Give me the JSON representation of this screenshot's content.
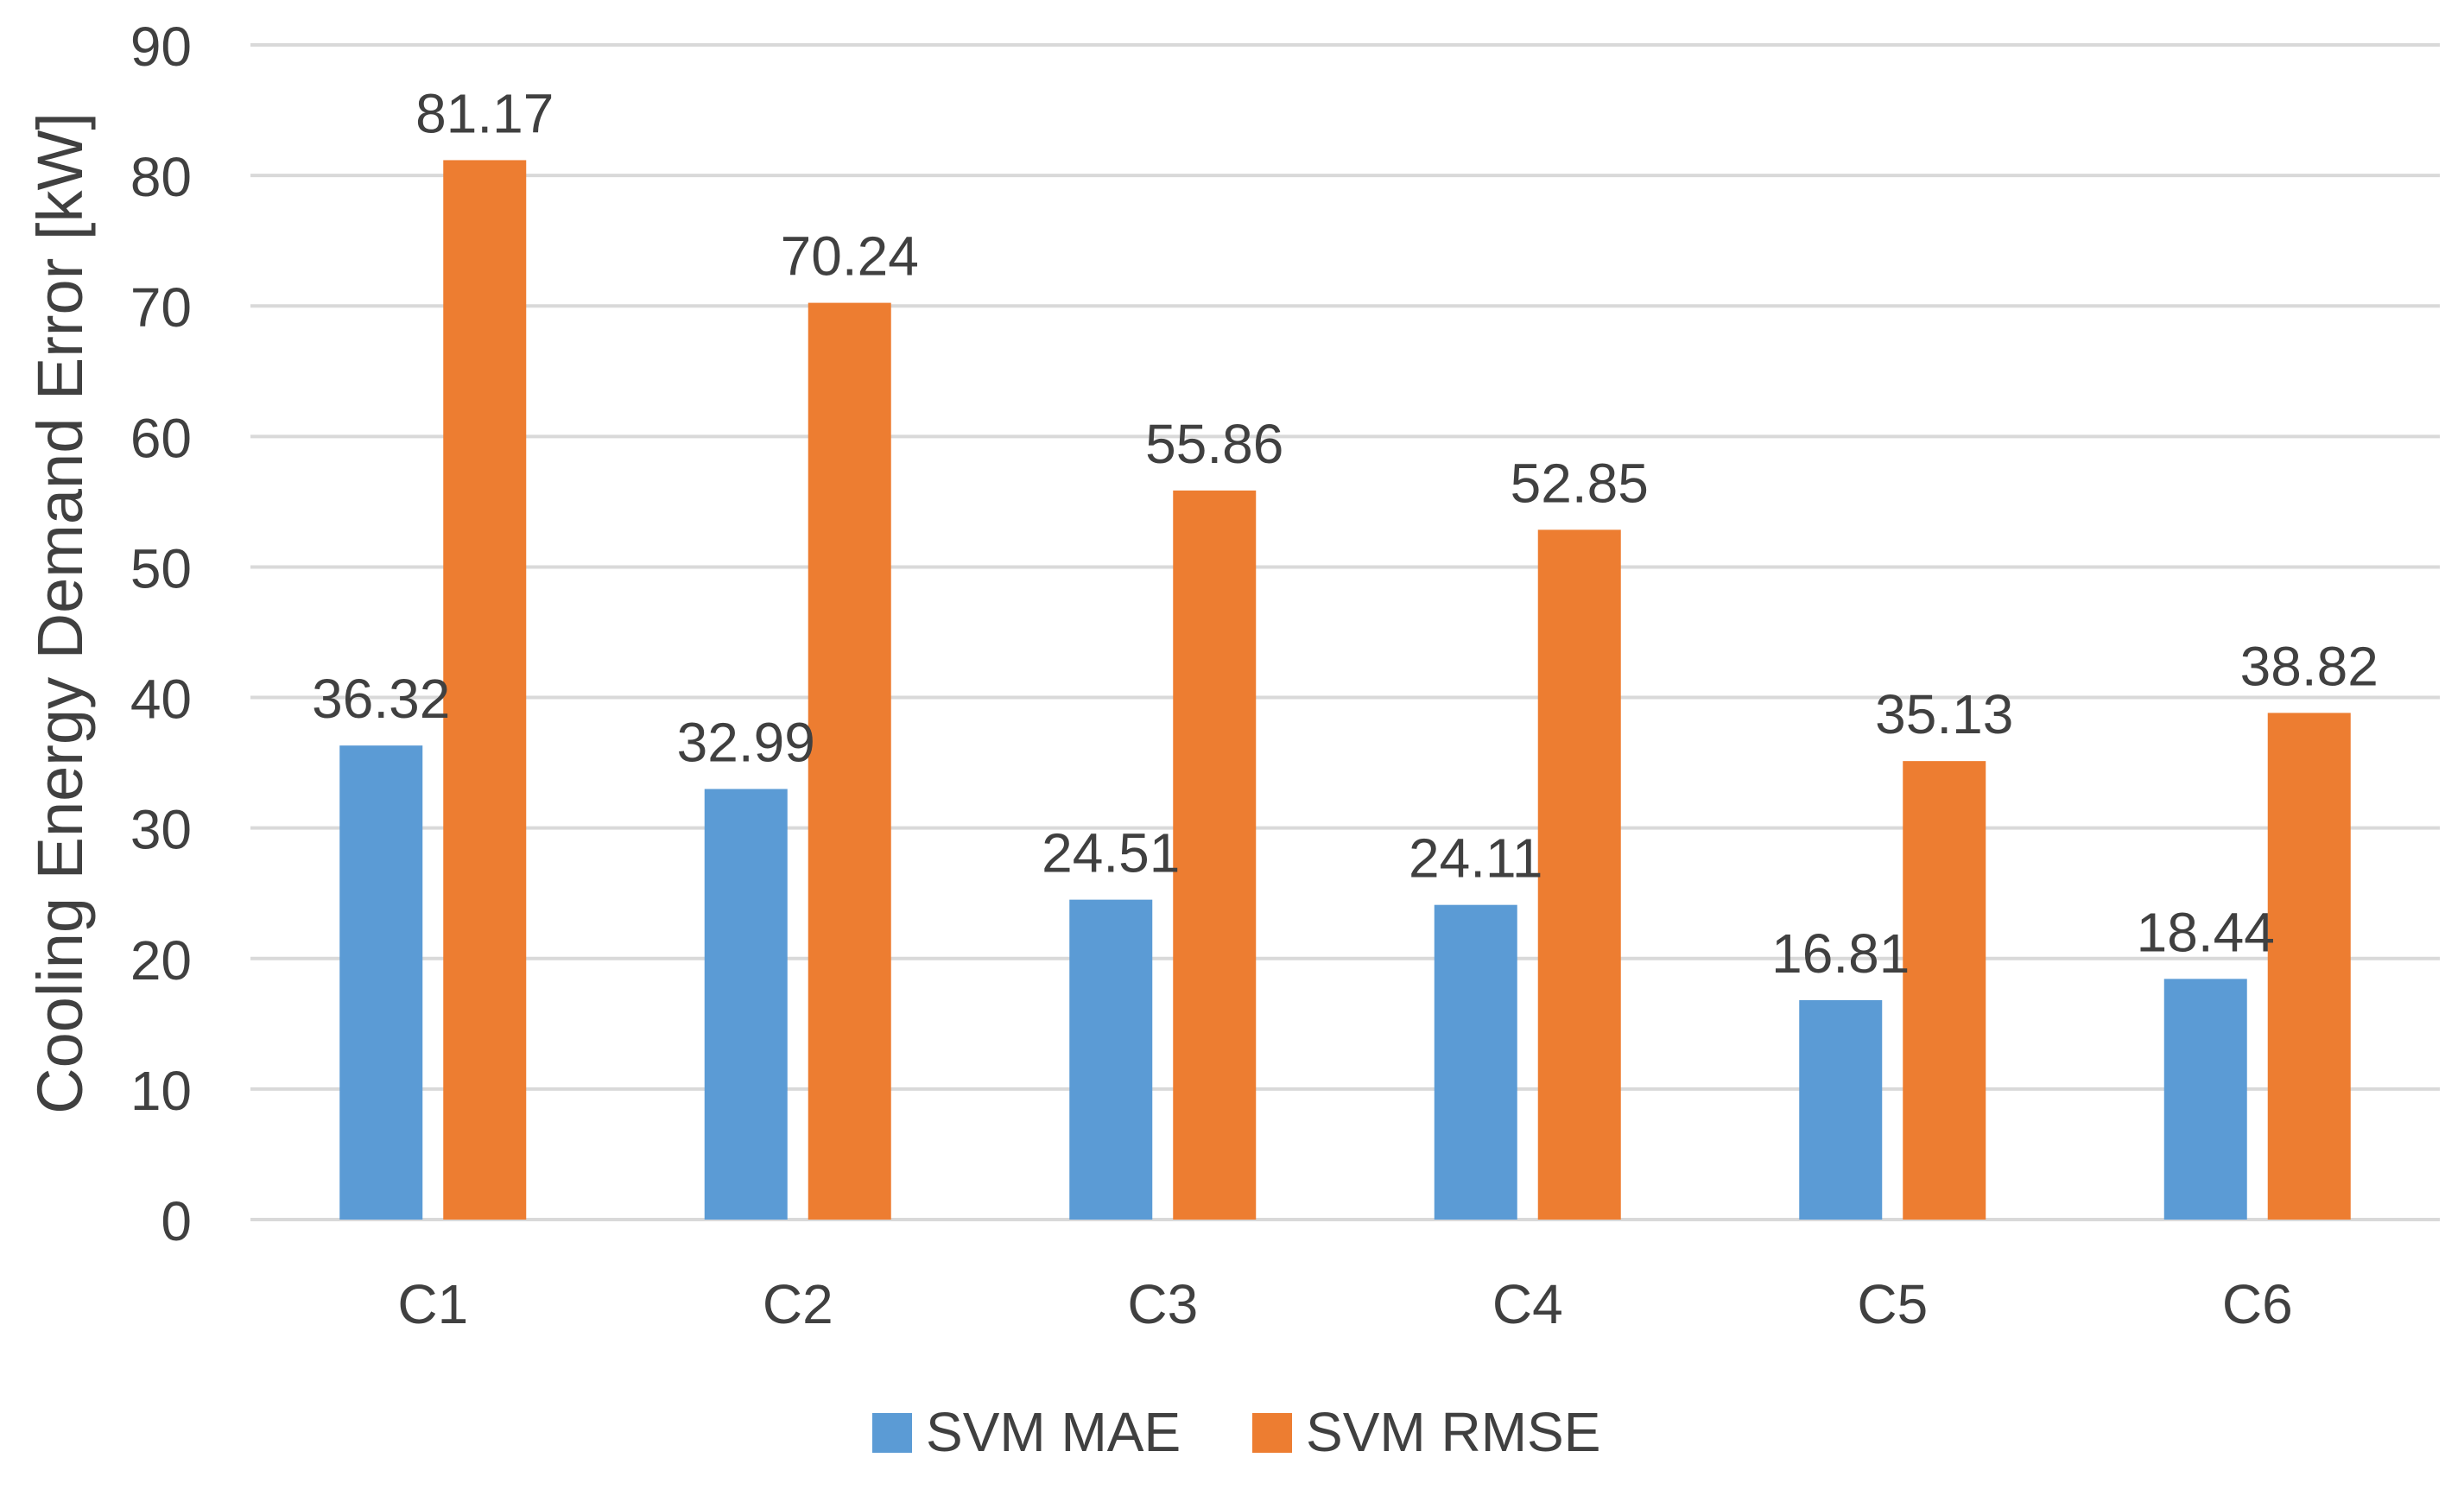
{
  "chart_data": {
    "type": "bar",
    "title": "",
    "xlabel": "",
    "ylabel": "Cooling Energy Demand Error [kW]",
    "ylim": [
      0,
      90
    ],
    "yticks": [
      0,
      10,
      20,
      30,
      40,
      50,
      60,
      70,
      80,
      90
    ],
    "grid": true,
    "legend_position": "bottom",
    "categories": [
      "C1",
      "C2",
      "C3",
      "C4",
      "C5",
      "C6"
    ],
    "series": [
      {
        "name": "SVM MAE",
        "color": "#5B9BD5",
        "values": [
          36.32,
          32.99,
          24.51,
          24.11,
          16.81,
          18.44
        ],
        "labels": [
          "36.32",
          "32.99",
          "24.51",
          "24.11",
          "16.81",
          "18.44"
        ]
      },
      {
        "name": "SVM RMSE",
        "color": "#ED7D31",
        "values": [
          81.17,
          70.24,
          55.86,
          52.85,
          35.13,
          38.82
        ],
        "labels": [
          "81.17",
          "70.24",
          "55.86",
          "52.85",
          "35.13",
          "38.82"
        ]
      }
    ]
  }
}
